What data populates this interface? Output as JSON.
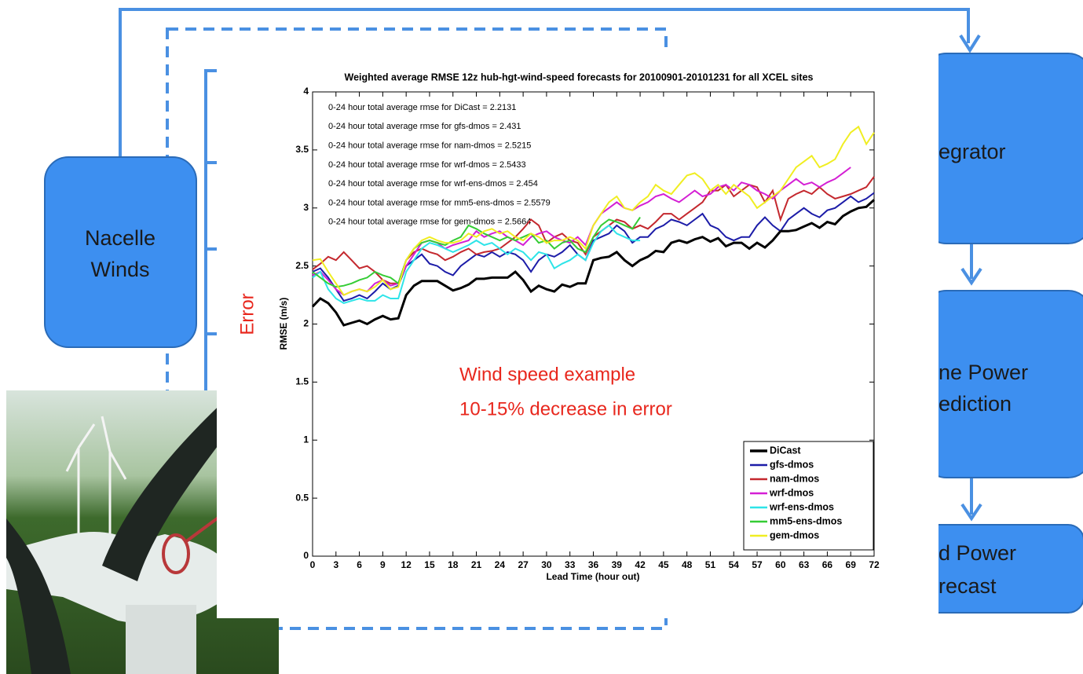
{
  "chart_data": {
    "type": "line",
    "title": "Weighted average RMSE 12z hub-hgt-wind-speed forecasts for 20100901-20101231 for all XCEL sites",
    "xlabel": "Lead Time (hour out)",
    "ylabel": "RMSE (m/s)",
    "annotations": [
      "0-24 hour total average rmse for DiCast = 2.2131",
      "0-24 hour total average rmse for gfs-dmos = 2.431",
      "0-24 hour total average rmse for nam-dmos = 2.5215",
      "0-24 hour total average rmse for wrf-dmos = 2.5433",
      "0-24 hour total average rmse for wrf-ens-dmos = 2.454",
      "0-24 hour total average rmse for mm5-ens-dmos = 2.5579",
      "0-24 hour total average rmse for gem-dmos = 2.5664"
    ],
    "highlight": [
      "Wind speed example",
      "10-15% decrease in error"
    ],
    "xlim": [
      0,
      72
    ],
    "ylim": [
      0,
      4
    ],
    "xticks": [
      0,
      3,
      6,
      9,
      12,
      15,
      18,
      21,
      24,
      27,
      30,
      33,
      36,
      39,
      42,
      45,
      48,
      51,
      54,
      57,
      60,
      63,
      66,
      69,
      72
    ],
    "yticks": [
      0,
      0.5,
      1,
      1.5,
      2,
      2.5,
      3,
      3.5,
      4
    ],
    "grid": false,
    "legend": "lower right",
    "x": [
      0,
      1,
      2,
      3,
      4,
      5,
      6,
      7,
      8,
      9,
      10,
      11,
      12,
      13,
      14,
      15,
      16,
      17,
      18,
      19,
      20,
      21,
      22,
      23,
      24,
      25,
      26,
      27,
      28,
      29,
      30,
      31,
      32,
      33,
      34,
      35,
      36,
      37,
      38,
      39,
      40,
      41,
      42,
      43,
      44,
      45,
      46,
      47,
      48,
      49,
      50,
      51,
      52,
      53,
      54,
      55,
      56,
      57,
      58,
      59,
      60,
      61,
      62,
      63,
      64,
      65,
      66,
      67,
      68,
      69,
      70,
      71,
      72
    ],
    "series": [
      {
        "name": "DiCast",
        "color": "#000000",
        "values": [
          2.15,
          2.22,
          2.18,
          2.1,
          1.99,
          2.01,
          2.03,
          2.0,
          2.04,
          2.07,
          2.04,
          2.05,
          2.25,
          2.33,
          2.37,
          2.37,
          2.37,
          2.33,
          2.29,
          2.31,
          2.34,
          2.39,
          2.39,
          2.4,
          2.4,
          2.4,
          2.45,
          2.38,
          2.28,
          2.33,
          2.3,
          2.28,
          2.34,
          2.32,
          2.35,
          2.35,
          2.55,
          2.57,
          2.58,
          2.62,
          2.55,
          2.5,
          2.55,
          2.58,
          2.63,
          2.62,
          2.7,
          2.72,
          2.7,
          2.73,
          2.75,
          2.71,
          2.74,
          2.67,
          2.7,
          2.7,
          2.65,
          2.7,
          2.66,
          2.72,
          2.8,
          2.8,
          2.81,
          2.84,
          2.87,
          2.83,
          2.88,
          2.86,
          2.93,
          2.97,
          3.0,
          3.01,
          3.07
        ]
      },
      {
        "name": "gfs-dmos",
        "color": "#1c1ca8",
        "values": [
          2.45,
          2.48,
          2.4,
          2.3,
          2.2,
          2.22,
          2.25,
          2.22,
          2.28,
          2.35,
          2.3,
          2.33,
          2.5,
          2.55,
          2.6,
          2.52,
          2.5,
          2.45,
          2.42,
          2.5,
          2.55,
          2.6,
          2.58,
          2.62,
          2.58,
          2.62,
          2.6,
          2.55,
          2.45,
          2.55,
          2.6,
          2.58,
          2.62,
          2.68,
          2.6,
          2.55,
          2.72,
          2.75,
          2.78,
          2.85,
          2.8,
          2.7,
          2.75,
          2.75,
          2.82,
          2.85,
          2.9,
          2.88,
          2.85,
          2.9,
          2.95,
          2.85,
          2.82,
          2.75,
          2.72,
          2.75,
          2.75,
          2.85,
          2.92,
          2.85,
          2.8,
          2.9,
          2.95,
          3.0,
          2.95,
          2.92,
          2.98,
          3.0,
          3.05,
          3.1,
          3.05,
          3.08,
          3.13
        ]
      },
      {
        "name": "nam-dmos",
        "color": "#c4282e",
        "values": [
          2.47,
          2.52,
          2.58,
          2.55,
          2.62,
          2.55,
          2.48,
          2.5,
          2.45,
          2.38,
          2.35,
          2.35,
          2.55,
          2.62,
          2.65,
          2.62,
          2.6,
          2.55,
          2.58,
          2.62,
          2.65,
          2.6,
          2.62,
          2.63,
          2.65,
          2.7,
          2.75,
          2.82,
          2.9,
          2.85,
          2.7,
          2.75,
          2.78,
          2.72,
          2.7,
          2.6,
          2.75,
          2.8,
          2.85,
          2.9,
          2.88,
          2.82,
          2.85,
          2.82,
          2.88,
          2.95,
          2.95,
          2.9,
          2.95,
          3.0,
          3.05,
          3.15,
          3.15,
          3.2,
          3.1,
          3.15,
          3.2,
          3.18,
          3.05,
          3.15,
          2.9,
          3.08,
          3.12,
          3.15,
          3.12,
          3.18,
          3.12,
          3.08,
          3.1,
          3.12,
          3.15,
          3.18,
          3.27
        ]
      },
      {
        "name": "wrf-dmos",
        "color": "#d41fd4",
        "values": [
          2.42,
          2.45,
          2.38,
          2.3,
          2.25,
          2.28,
          2.3,
          2.28,
          2.35,
          2.38,
          2.33,
          2.35,
          2.5,
          2.6,
          2.7,
          2.72,
          2.7,
          2.65,
          2.68,
          2.7,
          2.72,
          2.8,
          2.75,
          2.78,
          2.8,
          2.75,
          2.72,
          2.68,
          2.75,
          2.78,
          2.8,
          2.75,
          2.72,
          2.7,
          2.75,
          2.68,
          2.85,
          2.95,
          3.0,
          3.05,
          3.0,
          2.98,
          3.02,
          3.05,
          3.1,
          3.12,
          3.08,
          3.05,
          3.1,
          3.15,
          3.1,
          3.12,
          3.18,
          3.2,
          3.15,
          3.22,
          3.2,
          3.15,
          3.12,
          3.08,
          3.15,
          3.2,
          3.25,
          3.2,
          3.22,
          3.18,
          3.22,
          3.25,
          3.3,
          3.35,
          null,
          null,
          null
        ]
      },
      {
        "name": "wrf-ens-dmos",
        "color": "#2ee4e8",
        "values": [
          2.4,
          2.45,
          2.3,
          2.22,
          2.18,
          2.2,
          2.22,
          2.2,
          2.2,
          2.25,
          2.22,
          2.22,
          2.45,
          2.55,
          2.65,
          2.7,
          2.68,
          2.65,
          2.62,
          2.65,
          2.68,
          2.72,
          2.68,
          2.7,
          2.65,
          2.6,
          2.65,
          2.62,
          2.55,
          2.62,
          2.6,
          2.48,
          2.52,
          2.55,
          2.6,
          2.55,
          2.7,
          2.8,
          2.85,
          2.78,
          2.75,
          2.72,
          2.72,
          null,
          null,
          null,
          null,
          null,
          null,
          null,
          null,
          null,
          null,
          null,
          null,
          null,
          null,
          null,
          null,
          null,
          null,
          null,
          null,
          null,
          null,
          null,
          null,
          null,
          null,
          null,
          null,
          null,
          null
        ]
      },
      {
        "name": "mm5-ens-dmos",
        "color": "#35cc35",
        "values": [
          2.45,
          2.4,
          2.35,
          2.32,
          2.33,
          2.35,
          2.38,
          2.4,
          2.45,
          2.42,
          2.4,
          2.35,
          2.55,
          2.65,
          2.7,
          2.72,
          2.7,
          2.68,
          2.72,
          2.75,
          2.85,
          2.82,
          2.78,
          2.75,
          2.72,
          2.75,
          2.72,
          2.75,
          2.78,
          2.7,
          2.72,
          2.65,
          2.7,
          2.72,
          2.65,
          2.62,
          2.75,
          2.85,
          2.9,
          2.88,
          2.85,
          2.82,
          2.92,
          null,
          null,
          null,
          null,
          null,
          null,
          null,
          null,
          null,
          null,
          null,
          null,
          null,
          null,
          null,
          null,
          null,
          null,
          null,
          null,
          null,
          null,
          null,
          null,
          null,
          null,
          null,
          null,
          null,
          null
        ]
      },
      {
        "name": "gem-dmos",
        "color": "#f0ee22",
        "values": [
          2.55,
          2.56,
          2.45,
          2.35,
          2.25,
          2.28,
          2.3,
          2.28,
          2.32,
          2.38,
          2.3,
          2.32,
          2.55,
          2.65,
          2.72,
          2.75,
          2.72,
          2.7,
          2.7,
          2.72,
          2.78,
          2.75,
          2.8,
          2.82,
          2.78,
          2.8,
          2.75,
          2.72,
          2.78,
          2.75,
          2.7,
          2.72,
          2.72,
          2.75,
          2.72,
          2.65,
          2.85,
          2.95,
          3.05,
          3.1,
          3.0,
          2.98,
          3.05,
          3.1,
          3.2,
          3.15,
          3.12,
          3.2,
          3.28,
          3.3,
          3.25,
          3.15,
          3.2,
          3.12,
          3.2,
          3.15,
          3.1,
          3.0,
          3.05,
          3.1,
          3.15,
          3.25,
          3.35,
          3.4,
          3.45,
          3.35,
          3.38,
          3.42,
          3.55,
          3.65,
          3.7,
          3.55,
          3.65
        ]
      }
    ]
  },
  "diagram": {
    "label": "Error",
    "nodes": [
      {
        "lines": [
          "Nacelle",
          "Winds"
        ]
      },
      {
        "lines": [
          "egrator"
        ]
      },
      {
        "lines": [
          "ne Power",
          "ediction"
        ]
      },
      {
        "lines": [
          "d Power",
          "recast"
        ]
      }
    ]
  }
}
